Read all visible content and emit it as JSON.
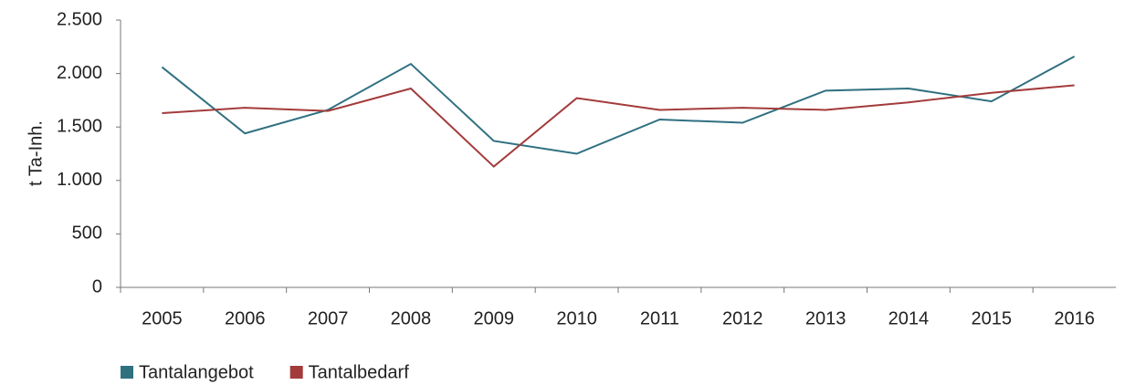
{
  "chart_data": {
    "type": "line",
    "y_label": "t Ta-Inh.",
    "categories": [
      "2005",
      "2006",
      "2007",
      "2008",
      "2009",
      "2010",
      "2011",
      "2012",
      "2013",
      "2014",
      "2015",
      "2016"
    ],
    "series": [
      {
        "name": "Tantalangebot",
        "color": "#2f7080",
        "values": [
          2060,
          1440,
          1660,
          2090,
          1370,
          1250,
          1570,
          1540,
          1840,
          1860,
          1740,
          2160
        ]
      },
      {
        "name": "Tantalbedarf",
        "color": "#a33b3b",
        "values": [
          1630,
          1680,
          1650,
          1860,
          1130,
          1770,
          1660,
          1680,
          1660,
          1730,
          1820,
          1890
        ]
      }
    ],
    "ylim": [
      0,
      2500
    ],
    "yticks": [
      0,
      500,
      {
        "value": 1000,
        "label": "1.000"
      },
      {
        "value": 1500,
        "label": "1.500"
      },
      {
        "value": 2000,
        "label": "2.000"
      },
      {
        "value": 2500,
        "label": "2.500"
      }
    ],
    "grid": false,
    "legend": "bottom-left"
  }
}
